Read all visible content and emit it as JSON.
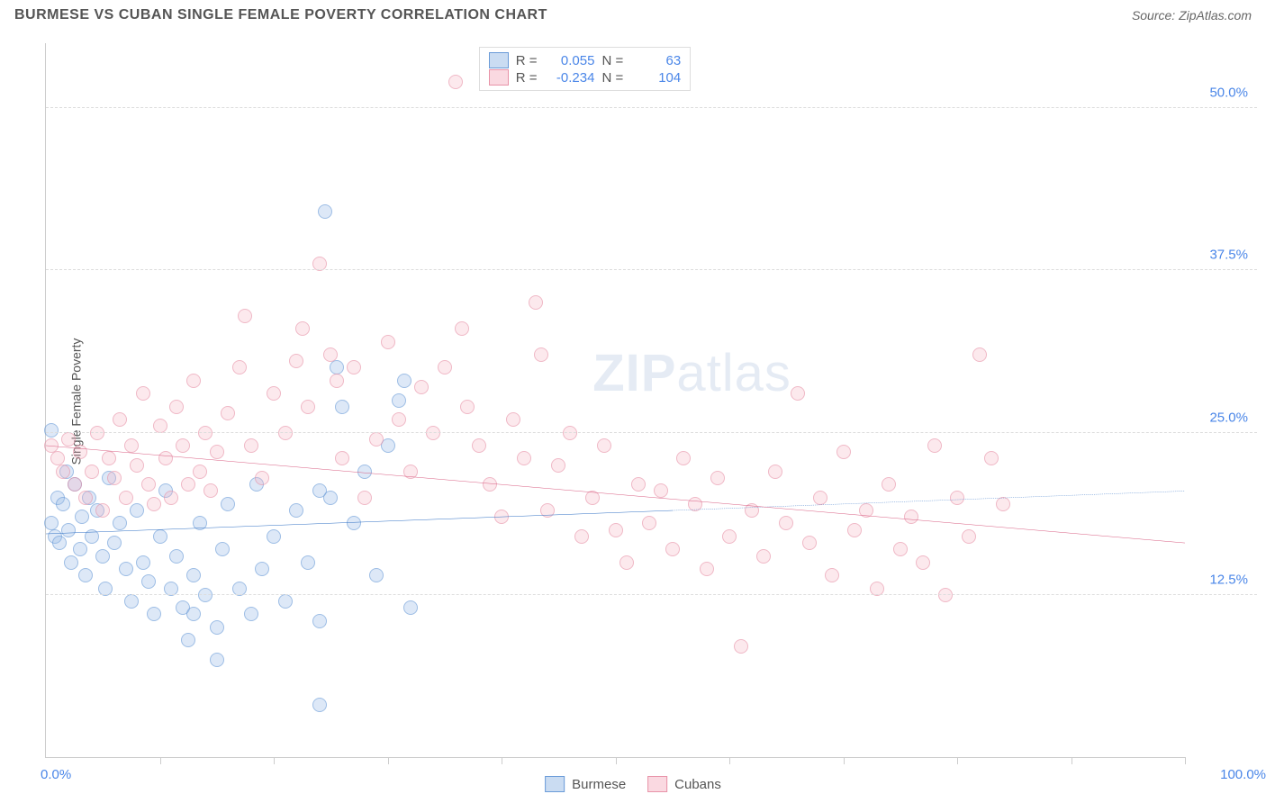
{
  "title": "BURMESE VS CUBAN SINGLE FEMALE POVERTY CORRELATION CHART",
  "source": "Source: ZipAtlas.com",
  "ylabel": "Single Female Poverty",
  "watermark_bold": "ZIP",
  "watermark_light": "atlas",
  "chart": {
    "type": "scatter",
    "xlim": [
      0,
      100
    ],
    "ylim": [
      0,
      55
    ],
    "xticks_minor": [
      10,
      20,
      30,
      40,
      50,
      60,
      70,
      80,
      90,
      100
    ],
    "ygrid": [
      {
        "v": 12.5,
        "label": "12.5%"
      },
      {
        "v": 25.0,
        "label": "25.0%"
      },
      {
        "v": 37.5,
        "label": "37.5%"
      },
      {
        "v": 50.0,
        "label": "50.0%"
      }
    ],
    "xmin_label": "0.0%",
    "xmax_label": "100.0%",
    "background_color": "#ffffff",
    "grid_color": "#dddddd",
    "axis_color": "#cccccc",
    "series": [
      {
        "name": "Burmese",
        "color_fill": "rgba(150,185,230,0.5)",
        "color_stroke": "#6a9bd8",
        "R": "0.055",
        "N": "63",
        "trend": {
          "x1": 0,
          "y1": 17.2,
          "x2": 55,
          "y2": 19.0,
          "ext_x2": 100,
          "ext_y2": 20.5,
          "stroke": "#2f6fc4",
          "width": 2
        },
        "points": [
          [
            0.5,
            25.2
          ],
          [
            0.5,
            18
          ],
          [
            0.8,
            17
          ],
          [
            1,
            20
          ],
          [
            1.2,
            16.5
          ],
          [
            1.5,
            19.5
          ],
          [
            1.8,
            22
          ],
          [
            2,
            17.5
          ],
          [
            2.2,
            15
          ],
          [
            2.5,
            21
          ],
          [
            3,
            16
          ],
          [
            3.2,
            18.5
          ],
          [
            3.5,
            14
          ],
          [
            3.8,
            20
          ],
          [
            4,
            17
          ],
          [
            4.5,
            19
          ],
          [
            5,
            15.5
          ],
          [
            5.2,
            13
          ],
          [
            5.5,
            21.5
          ],
          [
            6,
            16.5
          ],
          [
            6.5,
            18
          ],
          [
            7,
            14.5
          ],
          [
            7.5,
            12
          ],
          [
            8,
            19
          ],
          [
            8.5,
            15
          ],
          [
            9,
            13.5
          ],
          [
            9.5,
            11
          ],
          [
            10,
            17
          ],
          [
            10.5,
            20.5
          ],
          [
            11,
            13
          ],
          [
            11.5,
            15.5
          ],
          [
            12,
            11.5
          ],
          [
            12.5,
            9
          ],
          [
            13,
            14
          ],
          [
            13.5,
            18
          ],
          [
            14,
            12.5
          ],
          [
            15,
            10
          ],
          [
            15.5,
            16
          ],
          [
            16,
            19.5
          ],
          [
            17,
            13
          ],
          [
            18,
            11
          ],
          [
            18.5,
            21
          ],
          [
            19,
            14.5
          ],
          [
            20,
            17
          ],
          [
            21,
            12
          ],
          [
            22,
            19
          ],
          [
            23,
            15
          ],
          [
            24,
            10.5
          ],
          [
            24.5,
            42
          ],
          [
            25,
            20
          ],
          [
            25.5,
            30
          ],
          [
            26,
            27
          ],
          [
            27,
            18
          ],
          [
            28,
            22
          ],
          [
            29,
            14
          ],
          [
            30,
            24
          ],
          [
            31,
            27.5
          ],
          [
            31.5,
            29
          ],
          [
            32,
            11.5
          ],
          [
            15,
            7.5
          ],
          [
            24,
            4
          ],
          [
            13,
            11
          ],
          [
            24,
            20.5
          ]
        ]
      },
      {
        "name": "Cubans",
        "color_fill": "rgba(245,180,195,0.45)",
        "color_stroke": "#e893a8",
        "R": "-0.234",
        "N": "104",
        "trend": {
          "x1": 0,
          "y1": 24.0,
          "x2": 100,
          "y2": 16.5,
          "stroke": "#d85c82",
          "width": 2
        },
        "points": [
          [
            0.5,
            24
          ],
          [
            1,
            23
          ],
          [
            1.5,
            22
          ],
          [
            2,
            24.5
          ],
          [
            2.5,
            21
          ],
          [
            3,
            23.5
          ],
          [
            3.5,
            20
          ],
          [
            4,
            22
          ],
          [
            4.5,
            25
          ],
          [
            5,
            19
          ],
          [
            5.5,
            23
          ],
          [
            6,
            21.5
          ],
          [
            6.5,
            26
          ],
          [
            7,
            20
          ],
          [
            7.5,
            24
          ],
          [
            8,
            22.5
          ],
          [
            8.5,
            28
          ],
          [
            9,
            21
          ],
          [
            9.5,
            19.5
          ],
          [
            10,
            25.5
          ],
          [
            10.5,
            23
          ],
          [
            11,
            20
          ],
          [
            11.5,
            27
          ],
          [
            12,
            24
          ],
          [
            12.5,
            21
          ],
          [
            13,
            29
          ],
          [
            13.5,
            22
          ],
          [
            14,
            25
          ],
          [
            14.5,
            20.5
          ],
          [
            15,
            23.5
          ],
          [
            16,
            26.5
          ],
          [
            17,
            30
          ],
          [
            17.5,
            34
          ],
          [
            18,
            24
          ],
          [
            19,
            21.5
          ],
          [
            20,
            28
          ],
          [
            21,
            25
          ],
          [
            22,
            30.5
          ],
          [
            22.5,
            33
          ],
          [
            23,
            27
          ],
          [
            24,
            38
          ],
          [
            25,
            31
          ],
          [
            25.5,
            29
          ],
          [
            26,
            23
          ],
          [
            27,
            30
          ],
          [
            28,
            20
          ],
          [
            29,
            24.5
          ],
          [
            30,
            32
          ],
          [
            31,
            26
          ],
          [
            32,
            22
          ],
          [
            33,
            28.5
          ],
          [
            34,
            25
          ],
          [
            35,
            30
          ],
          [
            36,
            52
          ],
          [
            36.5,
            33
          ],
          [
            37,
            27
          ],
          [
            38,
            24
          ],
          [
            39,
            21
          ],
          [
            40,
            18.5
          ],
          [
            41,
            26
          ],
          [
            42,
            23
          ],
          [
            43,
            35
          ],
          [
            43.5,
            31
          ],
          [
            44,
            19
          ],
          [
            45,
            22.5
          ],
          [
            46,
            25
          ],
          [
            47,
            17
          ],
          [
            48,
            20
          ],
          [
            49,
            24
          ],
          [
            50,
            17.5
          ],
          [
            51,
            15
          ],
          [
            52,
            21
          ],
          [
            53,
            18
          ],
          [
            54,
            20.5
          ],
          [
            55,
            16
          ],
          [
            56,
            23
          ],
          [
            57,
            19.5
          ],
          [
            58,
            14.5
          ],
          [
            59,
            21.5
          ],
          [
            60,
            17
          ],
          [
            61,
            8.5
          ],
          [
            62,
            19
          ],
          [
            63,
            15.5
          ],
          [
            64,
            22
          ],
          [
            65,
            18
          ],
          [
            66,
            28
          ],
          [
            67,
            16.5
          ],
          [
            68,
            20
          ],
          [
            69,
            14
          ],
          [
            70,
            23.5
          ],
          [
            71,
            17.5
          ],
          [
            72,
            19
          ],
          [
            73,
            13
          ],
          [
            74,
            21
          ],
          [
            75,
            16
          ],
          [
            76,
            18.5
          ],
          [
            77,
            15
          ],
          [
            78,
            24
          ],
          [
            79,
            12.5
          ],
          [
            80,
            20
          ],
          [
            81,
            17
          ],
          [
            82,
            31
          ],
          [
            83,
            23
          ],
          [
            84,
            19.5
          ]
        ]
      }
    ]
  },
  "legend_top": {
    "r_label": "R =",
    "n_label": "N ="
  },
  "legend_bottom": [
    "Burmese",
    "Cubans"
  ]
}
